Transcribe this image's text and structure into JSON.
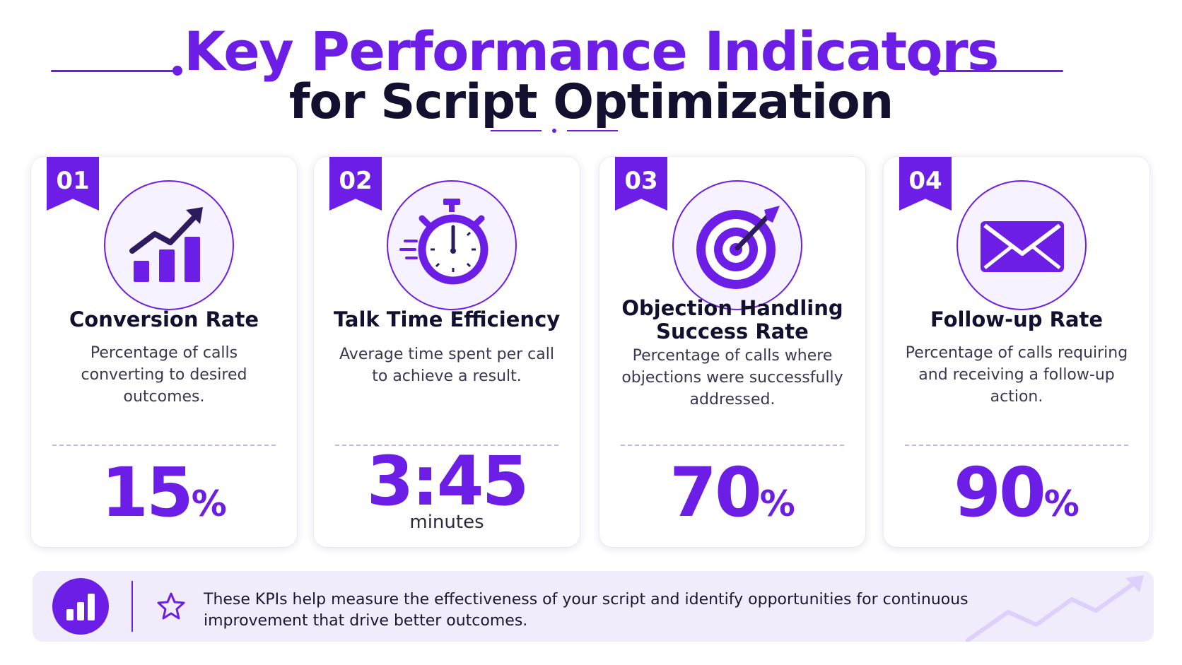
{
  "header": {
    "title_line1": "Key Performance Indicators",
    "title_line2": "for Script Optimization"
  },
  "colors": {
    "accent": "#6d1ee6",
    "title_dark": "#130f2e",
    "card_background": "#ffffff",
    "footer_background": "#f1ecfc"
  },
  "cards": [
    {
      "number": "01",
      "icon": "growth-chart-icon",
      "title": "Conversion Rate",
      "description": "Percentage of calls converting to desired outcomes.",
      "value": "15",
      "unit": "%"
    },
    {
      "number": "02",
      "icon": "stopwatch-icon",
      "title": "Talk Time Efficiency",
      "description": "Average time spent per call to achieve a result.",
      "value": "3:45",
      "subunit": "minutes"
    },
    {
      "number": "03",
      "icon": "target-icon",
      "title": "Objection Handling Success Rate",
      "description": "Percentage of calls where objections were successfully addressed.",
      "value": "70",
      "unit": "%"
    },
    {
      "number": "04",
      "icon": "envelope-icon",
      "title": "Follow-up Rate",
      "description": "Percentage of calls requiring and receiving a follow-up action.",
      "value": "90",
      "unit": "%"
    }
  ],
  "footer": {
    "icon": "bar-chart-icon",
    "star_icon": "star-icon",
    "text": "These KPIs help measure the effectiveness of your script and identify opportunities for continuous improvement that drive better outcomes."
  }
}
